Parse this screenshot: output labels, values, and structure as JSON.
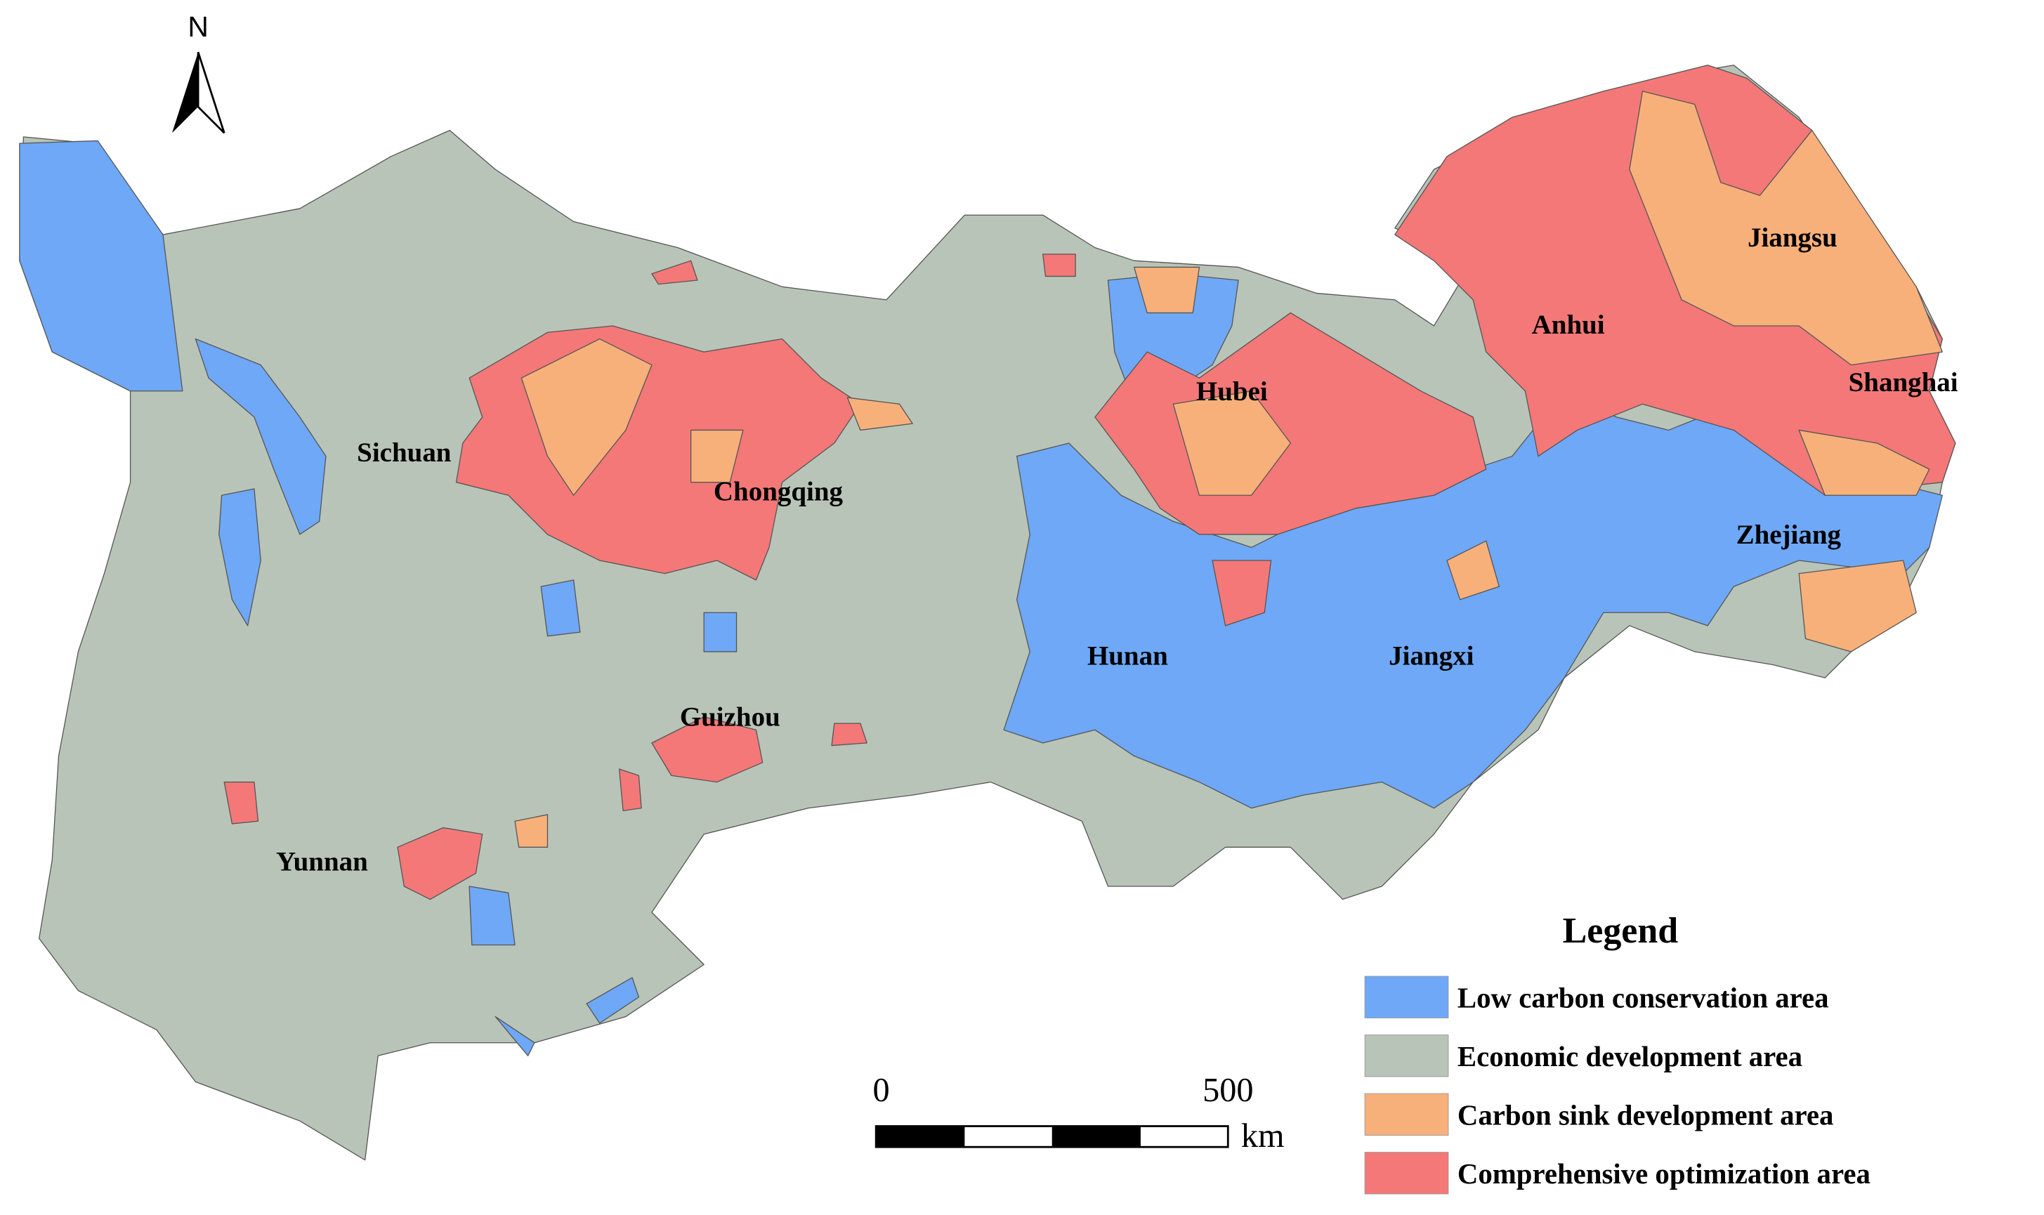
{
  "north_arrow": {
    "label": "N"
  },
  "map_labels": [
    "Sichuan",
    "Chongqing",
    "Hubei",
    "Anhui",
    "Jiangsu",
    "Shanghai",
    "Zhejiang",
    "Hunan",
    "Jiangxi",
    "Guizhou",
    "Yunnan"
  ],
  "legend": {
    "title": "Legend",
    "items": [
      {
        "name": "Low carbon conservation area",
        "color": "#6ea8f7"
      },
      {
        "name": "Economic development area",
        "color": "#b9c4b8"
      },
      {
        "name": "Carbon sink development area",
        "color": "#f8b07a"
      },
      {
        "name": "Comprehensive optimization area",
        "color": "#f47878"
      }
    ]
  },
  "scale_bar": {
    "ticks": [
      0,
      500
    ],
    "unit": "km"
  }
}
